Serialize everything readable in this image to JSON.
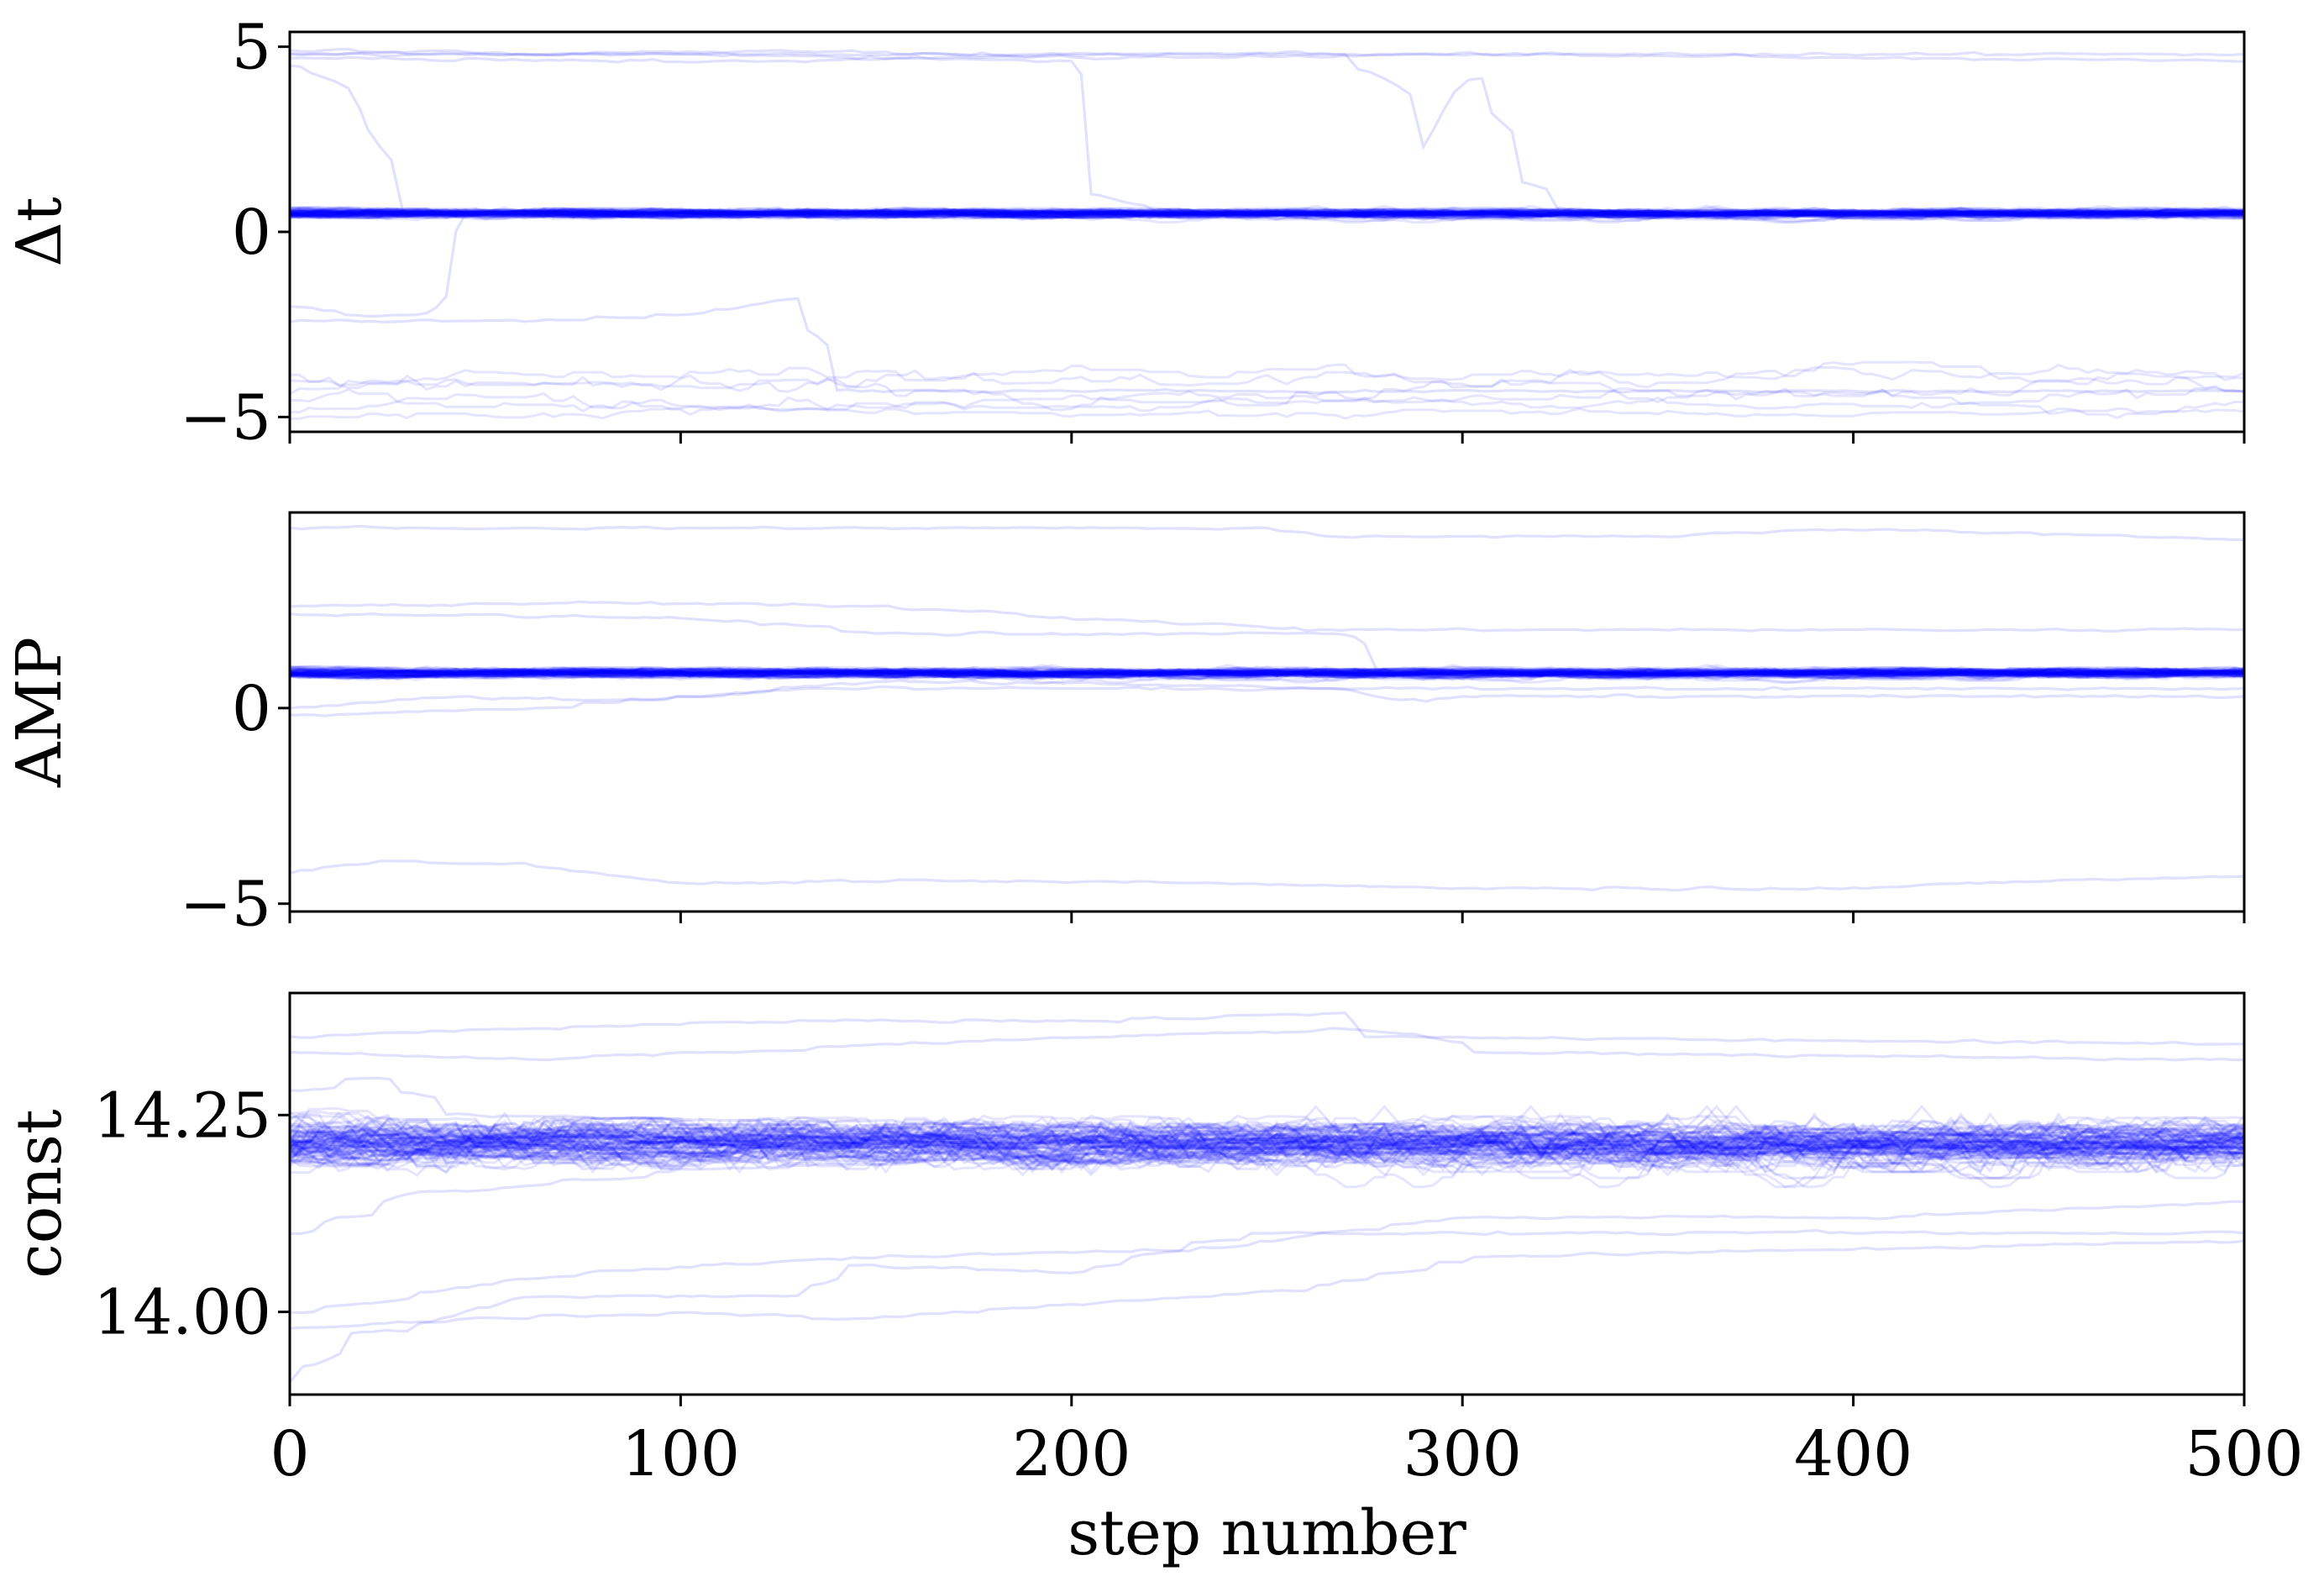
{
  "chart_data": [
    {
      "type": "line",
      "panel": "top",
      "ylabel": "Δt",
      "xlim": [
        0,
        500
      ],
      "ylim": [
        -5.4,
        5.4
      ],
      "yticks": [
        -5,
        0,
        5
      ],
      "ytick_labels": [
        "−5",
        "0",
        "5"
      ],
      "xticks": [
        0,
        100,
        200,
        300,
        400,
        500
      ],
      "line_color": "#0000ff",
      "line_alpha": 0.1,
      "grid": false,
      "series": [
        {
          "kind": "cluster",
          "center": 0.5,
          "spread": 0.12,
          "count": 90
        },
        {
          "kind": "walker",
          "points": [
            [
              0,
              4.9
            ],
            [
              60,
              4.8
            ],
            [
              120,
              4.9
            ],
            [
              200,
              4.7
            ],
            [
              300,
              4.8
            ],
            [
              400,
              4.7
            ],
            [
              500,
              4.6
            ]
          ]
        },
        {
          "kind": "walker",
          "points": [
            [
              0,
              4.7
            ],
            [
              120,
              4.6
            ],
            [
              200,
              4.8
            ],
            [
              500,
              4.8
            ]
          ]
        },
        {
          "kind": "walker",
          "points": [
            [
              0,
              4.5
            ],
            [
              8,
              4.2
            ],
            [
              15,
              3.0
            ],
            [
              18,
              1.0
            ],
            [
              20,
              0.5
            ],
            [
              500,
              0.5
            ]
          ]
        },
        {
          "kind": "walker",
          "points": [
            [
              0,
              4.8
            ],
            [
              100,
              4.8
            ],
            [
              200,
              4.6
            ],
            [
              205,
              1.0
            ],
            [
              210,
              0.5
            ],
            [
              500,
              0.5
            ]
          ]
        },
        {
          "kind": "walker",
          "points": [
            [
              0,
              4.8
            ],
            [
              270,
              4.8
            ],
            [
              280,
              3.5
            ],
            [
              290,
              2.3
            ],
            [
              298,
              3.8
            ],
            [
              305,
              4.4
            ],
            [
              310,
              2.0
            ],
            [
              318,
              1.0
            ],
            [
              325,
              0.5
            ],
            [
              500,
              0.5
            ]
          ]
        },
        {
          "kind": "walker",
          "points": [
            [
              0,
              -2.0
            ],
            [
              20,
              -2.3
            ],
            [
              35,
              -2.2
            ],
            [
              40,
              -0.5
            ],
            [
              45,
              0.5
            ],
            [
              500,
              0.5
            ]
          ]
        },
        {
          "kind": "walker",
          "points": [
            [
              0,
              -2.4
            ],
            [
              60,
              -2.4
            ],
            [
              100,
              -2.2
            ],
            [
              130,
              -1.8
            ],
            [
              135,
              -3.5
            ],
            [
              140,
              -4.3
            ],
            [
              500,
              -4.3
            ]
          ]
        },
        {
          "kind": "noisy",
          "center": -3.8,
          "spread": 0.25,
          "count": 1
        },
        {
          "kind": "noisy",
          "center": -4.2,
          "spread": 0.3,
          "count": 1
        },
        {
          "kind": "noisy",
          "center": -4.5,
          "spread": 0.3,
          "count": 1
        },
        {
          "kind": "noisy",
          "center": -4.7,
          "spread": 0.2,
          "count": 1
        },
        {
          "kind": "noisy",
          "center": -4.0,
          "spread": 0.3,
          "count": 1
        },
        {
          "kind": "noisy",
          "center": -4.9,
          "spread": 0.15,
          "count": 1
        }
      ]
    },
    {
      "type": "line",
      "panel": "middle",
      "ylabel": "AMP",
      "xlim": [
        0,
        500
      ],
      "ylim": [
        -5.2,
        5.0
      ],
      "yticks": [
        -5,
        0
      ],
      "ytick_labels": [
        "−5",
        "0"
      ],
      "xticks": [
        0,
        100,
        200,
        300,
        400,
        500
      ],
      "line_color": "#0000ff",
      "line_alpha": 0.1,
      "grid": false,
      "series": [
        {
          "kind": "cluster",
          "center": 0.9,
          "spread": 0.12,
          "count": 90
        },
        {
          "kind": "walker",
          "points": [
            [
              0,
              4.6
            ],
            [
              100,
              4.6
            ],
            [
              250,
              4.6
            ],
            [
              260,
              4.4
            ],
            [
              350,
              4.4
            ],
            [
              400,
              4.6
            ],
            [
              500,
              4.3
            ]
          ]
        },
        {
          "kind": "walker",
          "points": [
            [
              0,
              2.6
            ],
            [
              80,
              2.7
            ],
            [
              150,
              2.6
            ],
            [
              180,
              2.4
            ],
            [
              260,
              2.0
            ],
            [
              500,
              2.0
            ]
          ]
        },
        {
          "kind": "walker",
          "points": [
            [
              0,
              2.4
            ],
            [
              100,
              2.3
            ],
            [
              150,
              1.9
            ],
            [
              270,
              1.9
            ],
            [
              275,
              1.0
            ],
            [
              500,
              1.0
            ]
          ]
        },
        {
          "kind": "walker",
          "points": [
            [
              0,
              0.0
            ],
            [
              40,
              0.3
            ],
            [
              90,
              0.2
            ],
            [
              150,
              0.7
            ],
            [
              270,
              0.5
            ],
            [
              275,
              0.0
            ],
            [
              300,
              0.3
            ],
            [
              500,
              0.3
            ]
          ]
        },
        {
          "kind": "walker",
          "points": [
            [
              0,
              -0.2
            ],
            [
              60,
              0.0
            ],
            [
              130,
              0.5
            ],
            [
              500,
              0.5
            ]
          ]
        },
        {
          "kind": "walker",
          "points": [
            [
              0,
              -4.2
            ],
            [
              20,
              -3.9
            ],
            [
              60,
              -4.0
            ],
            [
              100,
              -4.5
            ],
            [
              150,
              -4.4
            ],
            [
              250,
              -4.5
            ],
            [
              300,
              -4.6
            ],
            [
              400,
              -4.6
            ],
            [
              450,
              -4.4
            ],
            [
              500,
              -4.3
            ]
          ]
        }
      ]
    },
    {
      "type": "line",
      "panel": "bottom",
      "ylabel": "const",
      "xlabel": "step number",
      "xlim": [
        0,
        500
      ],
      "ylim": [
        13.895,
        14.405
      ],
      "yticks": [
        14.0,
        14.25
      ],
      "ytick_labels": [
        "14.00",
        "14.25"
      ],
      "xticks": [
        0,
        100,
        200,
        300,
        400,
        500
      ],
      "xtick_labels": [
        "0",
        "100",
        "200",
        "300",
        "400",
        "500"
      ],
      "line_color": "#0000ff",
      "line_alpha": 0.1,
      "grid": false,
      "series": [
        {
          "kind": "cluster",
          "center": 14.215,
          "spread": 0.028,
          "count": 100
        },
        {
          "kind": "walker",
          "points": [
            [
              0,
              14.35
            ],
            [
              60,
              14.36
            ],
            [
              130,
              14.37
            ],
            [
              200,
              14.37
            ],
            [
              270,
              14.38
            ],
            [
              275,
              14.35
            ],
            [
              500,
              14.34
            ]
          ]
        },
        {
          "kind": "walker",
          "points": [
            [
              0,
              14.33
            ],
            [
              60,
              14.32
            ],
            [
              150,
              14.34
            ],
            [
              270,
              14.36
            ],
            [
              300,
              14.33
            ],
            [
              500,
              14.32
            ]
          ]
        },
        {
          "kind": "walker",
          "points": [
            [
              0,
              14.28
            ],
            [
              20,
              14.3
            ],
            [
              40,
              14.25
            ],
            [
              500,
              14.21
            ]
          ]
        },
        {
          "kind": "walker",
          "points": [
            [
              0,
              13.91
            ],
            [
              10,
              13.97
            ],
            [
              30,
              13.98
            ],
            [
              60,
              14.02
            ],
            [
              130,
              14.02
            ],
            [
              140,
              14.06
            ],
            [
              200,
              14.05
            ],
            [
              240,
              14.1
            ],
            [
              300,
              14.1
            ],
            [
              400,
              14.1
            ],
            [
              500,
              14.1
            ]
          ]
        },
        {
          "kind": "walker",
          "points": [
            [
              0,
              13.98
            ],
            [
              40,
              13.99
            ],
            [
              100,
              14.0
            ],
            [
              140,
              13.99
            ],
            [
              260,
              14.03
            ],
            [
              300,
              14.07
            ],
            [
              400,
              14.08
            ],
            [
              500,
              14.09
            ]
          ]
        },
        {
          "kind": "walker",
          "points": [
            [
              0,
              14.0
            ],
            [
              70,
              14.05
            ],
            [
              150,
              14.07
            ],
            [
              230,
              14.08
            ],
            [
              300,
              14.12
            ],
            [
              400,
              14.12
            ],
            [
              500,
              14.14
            ]
          ]
        },
        {
          "kind": "walker",
          "points": [
            [
              0,
              14.1
            ],
            [
              30,
              14.15
            ],
            [
              100,
              14.18
            ],
            [
              200,
              14.2
            ],
            [
              500,
              14.2
            ]
          ]
        }
      ]
    }
  ]
}
